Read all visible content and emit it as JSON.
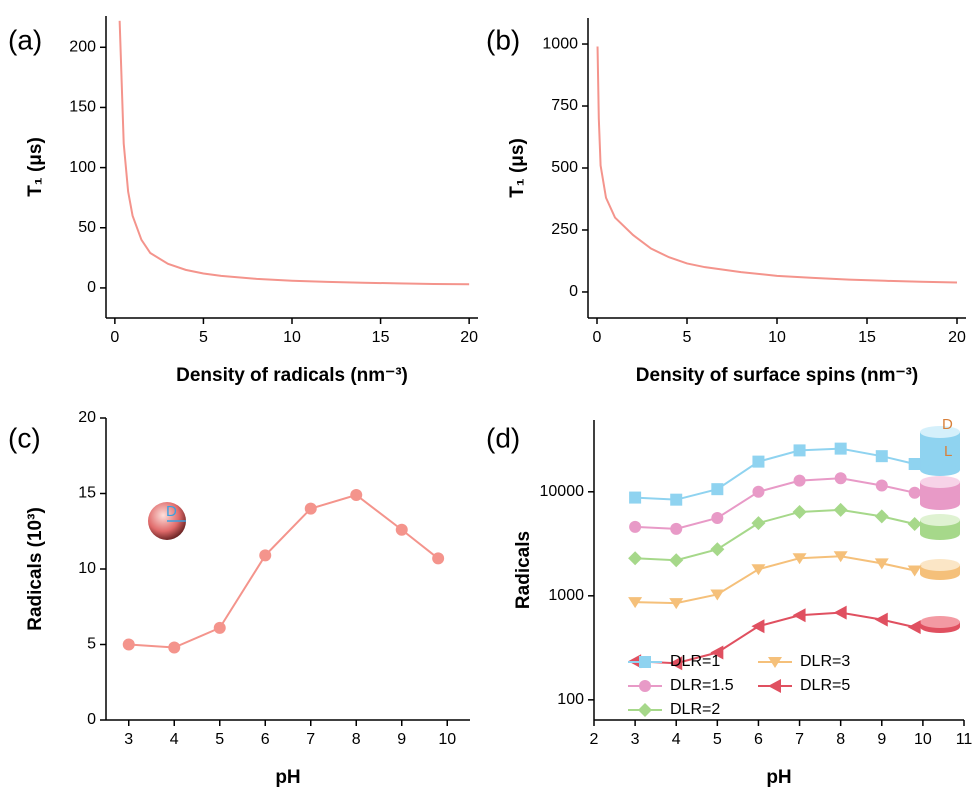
{
  "chart_data": [
    {
      "type": "line",
      "panel_label": "(a)",
      "x_label": "Density of radicals (nm⁻³)",
      "y_label": "T₁ (μs)",
      "color": "#f4948c",
      "x": [
        0.27,
        0.5,
        0.75,
        1,
        1.5,
        2,
        3,
        4,
        5,
        6,
        8,
        10,
        12,
        14,
        16,
        18,
        20
      ],
      "values": [
        222,
        120,
        80,
        60,
        40,
        29,
        20,
        15,
        12,
        10,
        7.5,
        6,
        5,
        4.3,
        3.8,
        3.3,
        3
      ],
      "xlim": [
        -0.5,
        20.5
      ],
      "xticks": [
        0,
        5,
        10,
        15,
        20
      ],
      "ylim": [
        -25,
        226
      ],
      "yticks": [
        0,
        50,
        100,
        150,
        200
      ]
    },
    {
      "type": "line",
      "panel_label": "(b)",
      "x_label": "Density of surface spins (nm⁻³)",
      "y_label": "T₁ (μs)",
      "color": "#f4948c",
      "x": [
        0.03,
        0.1,
        0.2,
        0.5,
        1,
        2,
        3,
        4,
        5,
        6,
        8,
        10,
        12,
        14,
        16,
        18,
        20
      ],
      "values": [
        990,
        700,
        510,
        380,
        300,
        230,
        175,
        140,
        115,
        100,
        80,
        65,
        57,
        50,
        45,
        41,
        38
      ],
      "xlim": [
        -0.5,
        20.5
      ],
      "xticks": [
        0,
        5,
        10,
        15,
        20
      ],
      "ylim": [
        -105,
        1105
      ],
      "yticks": [
        0,
        250,
        500,
        750,
        1000
      ]
    },
    {
      "type": "line",
      "panel_label": "(c)",
      "x_label": "pH",
      "y_label": "Radicals (10³)",
      "color": "#f4948c",
      "marker": "circle",
      "annotations": [
        "D"
      ],
      "x": [
        3,
        4,
        5,
        6,
        7,
        8,
        9,
        9.8
      ],
      "values": [
        5,
        4.8,
        6.1,
        10.9,
        14,
        14.9,
        12.6,
        10.7
      ],
      "xlim": [
        2.5,
        10.5
      ],
      "xticks": [
        3,
        4,
        5,
        6,
        7,
        8,
        9,
        10
      ],
      "ylim": [
        0,
        20
      ],
      "yticks": [
        0,
        5,
        10,
        15,
        20
      ]
    },
    {
      "type": "line",
      "panel_label": "(d)",
      "x_label": "pH",
      "y_label": "Radicals",
      "log_y": true,
      "annotations": [
        "D",
        "L"
      ],
      "x": [
        3,
        4,
        5,
        6,
        7,
        8,
        9,
        9.8
      ],
      "series": [
        {
          "name": "DLR=1",
          "color": "#8fd3f0",
          "marker": "square",
          "values": [
            8800,
            8400,
            10600,
            19500,
            25000,
            26000,
            22000,
            18500
          ]
        },
        {
          "name": "DLR=1.5",
          "color": "#e89ac7",
          "marker": "circle",
          "values": [
            4600,
            4400,
            5600,
            10000,
            12800,
            13500,
            11500,
            9800
          ]
        },
        {
          "name": "DLR=2",
          "color": "#a6d88a",
          "marker": "diamond",
          "values": [
            2300,
            2200,
            2800,
            5000,
            6400,
            6700,
            5800,
            4900
          ]
        },
        {
          "name": "DLR=3",
          "color": "#f5c07a",
          "marker": "triangle-down",
          "values": [
            870,
            850,
            1030,
            1800,
            2300,
            2400,
            2050,
            1750
          ]
        },
        {
          "name": "DLR=5",
          "color": "#e05060",
          "marker": "triangle-left",
          "values": [
            235,
            225,
            285,
            510,
            650,
            690,
            590,
            500
          ]
        }
      ],
      "xlim": [
        2,
        11
      ],
      "xticks": [
        2,
        3,
        4,
        5,
        6,
        7,
        8,
        9,
        10,
        11
      ],
      "ylim": [
        64,
        49000
      ],
      "yticks": [
        100,
        1000,
        10000
      ]
    }
  ]
}
